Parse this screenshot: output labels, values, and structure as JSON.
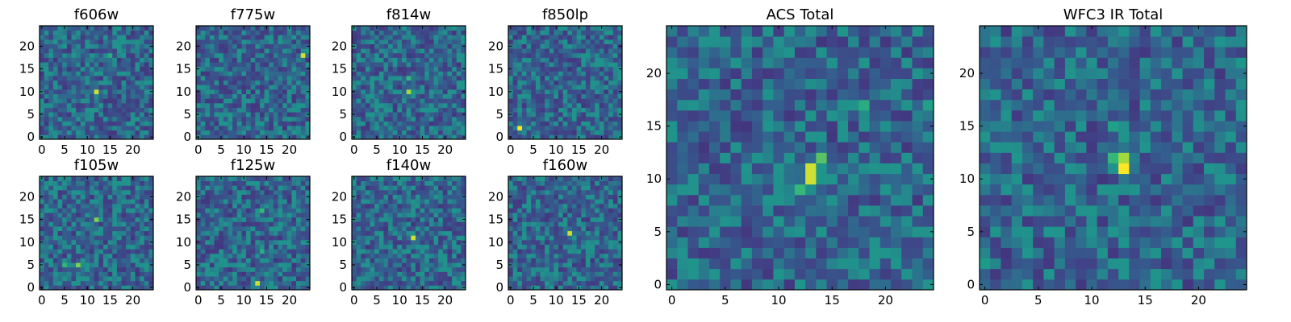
{
  "chart_data": [
    {
      "type": "heatmap",
      "title": "f606w",
      "xticks": [
        0,
        5,
        10,
        15,
        20
      ],
      "yticks": [
        0,
        5,
        10,
        15,
        20
      ],
      "xlim": [
        0,
        24
      ],
      "ylim": [
        0,
        24
      ],
      "grid_size": 25,
      "colormap": "viridis",
      "peaks": [
        {
          "x": 12,
          "y": 10,
          "value": 0.95
        },
        {
          "x": 15,
          "y": 18,
          "value": 0.7
        }
      ]
    },
    {
      "type": "heatmap",
      "title": "f775w",
      "xticks": [
        0,
        5,
        10,
        15,
        20
      ],
      "yticks": [
        0,
        5,
        10,
        15,
        20
      ],
      "xlim": [
        0,
        24
      ],
      "ylim": [
        0,
        24
      ],
      "grid_size": 25,
      "colormap": "viridis",
      "peaks": [
        {
          "x": 23,
          "y": 18,
          "value": 0.95
        }
      ]
    },
    {
      "type": "heatmap",
      "title": "f814w",
      "xticks": [
        0,
        5,
        10,
        15,
        20
      ],
      "yticks": [
        0,
        5,
        10,
        15,
        20
      ],
      "xlim": [
        0,
        24
      ],
      "ylim": [
        0,
        24
      ],
      "grid_size": 25,
      "colormap": "viridis",
      "peaks": [
        {
          "x": 12,
          "y": 10,
          "value": 0.9
        },
        {
          "x": 12,
          "y": 13,
          "value": 0.75
        }
      ]
    },
    {
      "type": "heatmap",
      "title": "f850lp",
      "xticks": [
        0,
        5,
        10,
        15,
        20
      ],
      "yticks": [
        0,
        5,
        10,
        15,
        20
      ],
      "xlim": [
        0,
        24
      ],
      "ylim": [
        0,
        24
      ],
      "grid_size": 25,
      "colormap": "viridis",
      "peaks": [
        {
          "x": 2,
          "y": 2,
          "value": 1.0
        }
      ]
    },
    {
      "type": "heatmap",
      "title": "f105w",
      "xticks": [
        0,
        5,
        10,
        15,
        20
      ],
      "yticks": [
        0,
        5,
        10,
        15,
        20
      ],
      "xlim": [
        0,
        24
      ],
      "ylim": [
        0,
        24
      ],
      "grid_size": 25,
      "colormap": "viridis",
      "peaks": [
        {
          "x": 12,
          "y": 15,
          "value": 0.85
        },
        {
          "x": 8,
          "y": 5,
          "value": 0.85
        },
        {
          "x": 5,
          "y": 5,
          "value": 0.75
        }
      ]
    },
    {
      "type": "heatmap",
      "title": "f125w",
      "xticks": [
        0,
        5,
        10,
        15,
        20
      ],
      "yticks": [
        0,
        5,
        10,
        15,
        20
      ],
      "xlim": [
        0,
        24
      ],
      "ylim": [
        0,
        24
      ],
      "grid_size": 25,
      "colormap": "viridis",
      "peaks": [
        {
          "x": 13,
          "y": 1,
          "value": 0.95
        },
        {
          "x": 14,
          "y": 17,
          "value": 0.75
        },
        {
          "x": 14,
          "y": 8,
          "value": 0.7
        }
      ]
    },
    {
      "type": "heatmap",
      "title": "f140w",
      "xticks": [
        0,
        5,
        10,
        15,
        20
      ],
      "yticks": [
        0,
        5,
        10,
        15,
        20
      ],
      "xlim": [
        0,
        24
      ],
      "ylim": [
        0,
        24
      ],
      "grid_size": 25,
      "colormap": "viridis",
      "peaks": [
        {
          "x": 13,
          "y": 11,
          "value": 0.95
        }
      ]
    },
    {
      "type": "heatmap",
      "title": "f160w",
      "xticks": [
        0,
        5,
        10,
        15,
        20
      ],
      "yticks": [
        0,
        5,
        10,
        15,
        20
      ],
      "xlim": [
        0,
        24
      ],
      "ylim": [
        0,
        24
      ],
      "grid_size": 25,
      "colormap": "viridis",
      "peaks": [
        {
          "x": 13,
          "y": 12,
          "value": 0.95
        }
      ]
    },
    {
      "type": "heatmap",
      "title": "ACS Total",
      "xticks": [
        0,
        5,
        10,
        15,
        20
      ],
      "yticks": [
        0,
        5,
        10,
        15,
        20
      ],
      "xlim": [
        0,
        24
      ],
      "ylim": [
        0,
        24
      ],
      "grid_size": 25,
      "colormap": "viridis",
      "peaks": [
        {
          "x": 13,
          "y": 11,
          "value": 0.95
        },
        {
          "x": 13,
          "y": 10,
          "value": 0.95
        },
        {
          "x": 14,
          "y": 12,
          "value": 0.8
        },
        {
          "x": 12,
          "y": 9,
          "value": 0.75
        },
        {
          "x": 18,
          "y": 17,
          "value": 0.7
        },
        {
          "x": 24,
          "y": 17,
          "value": 0.65
        }
      ]
    },
    {
      "type": "heatmap",
      "title": "WFC3 IR Total",
      "xticks": [
        0,
        5,
        10,
        15,
        20
      ],
      "yticks": [
        0,
        5,
        10,
        15,
        20
      ],
      "xlim": [
        0,
        24
      ],
      "ylim": [
        0,
        24
      ],
      "grid_size": 25,
      "colormap": "viridis",
      "peaks": [
        {
          "x": 13,
          "y": 11,
          "value": 1.0
        },
        {
          "x": 13,
          "y": 12,
          "value": 0.9
        },
        {
          "x": 12,
          "y": 12,
          "value": 0.75
        },
        {
          "x": 12,
          "y": 15,
          "value": 0.65
        },
        {
          "x": 0,
          "y": 2,
          "value": 0.6
        }
      ]
    }
  ]
}
